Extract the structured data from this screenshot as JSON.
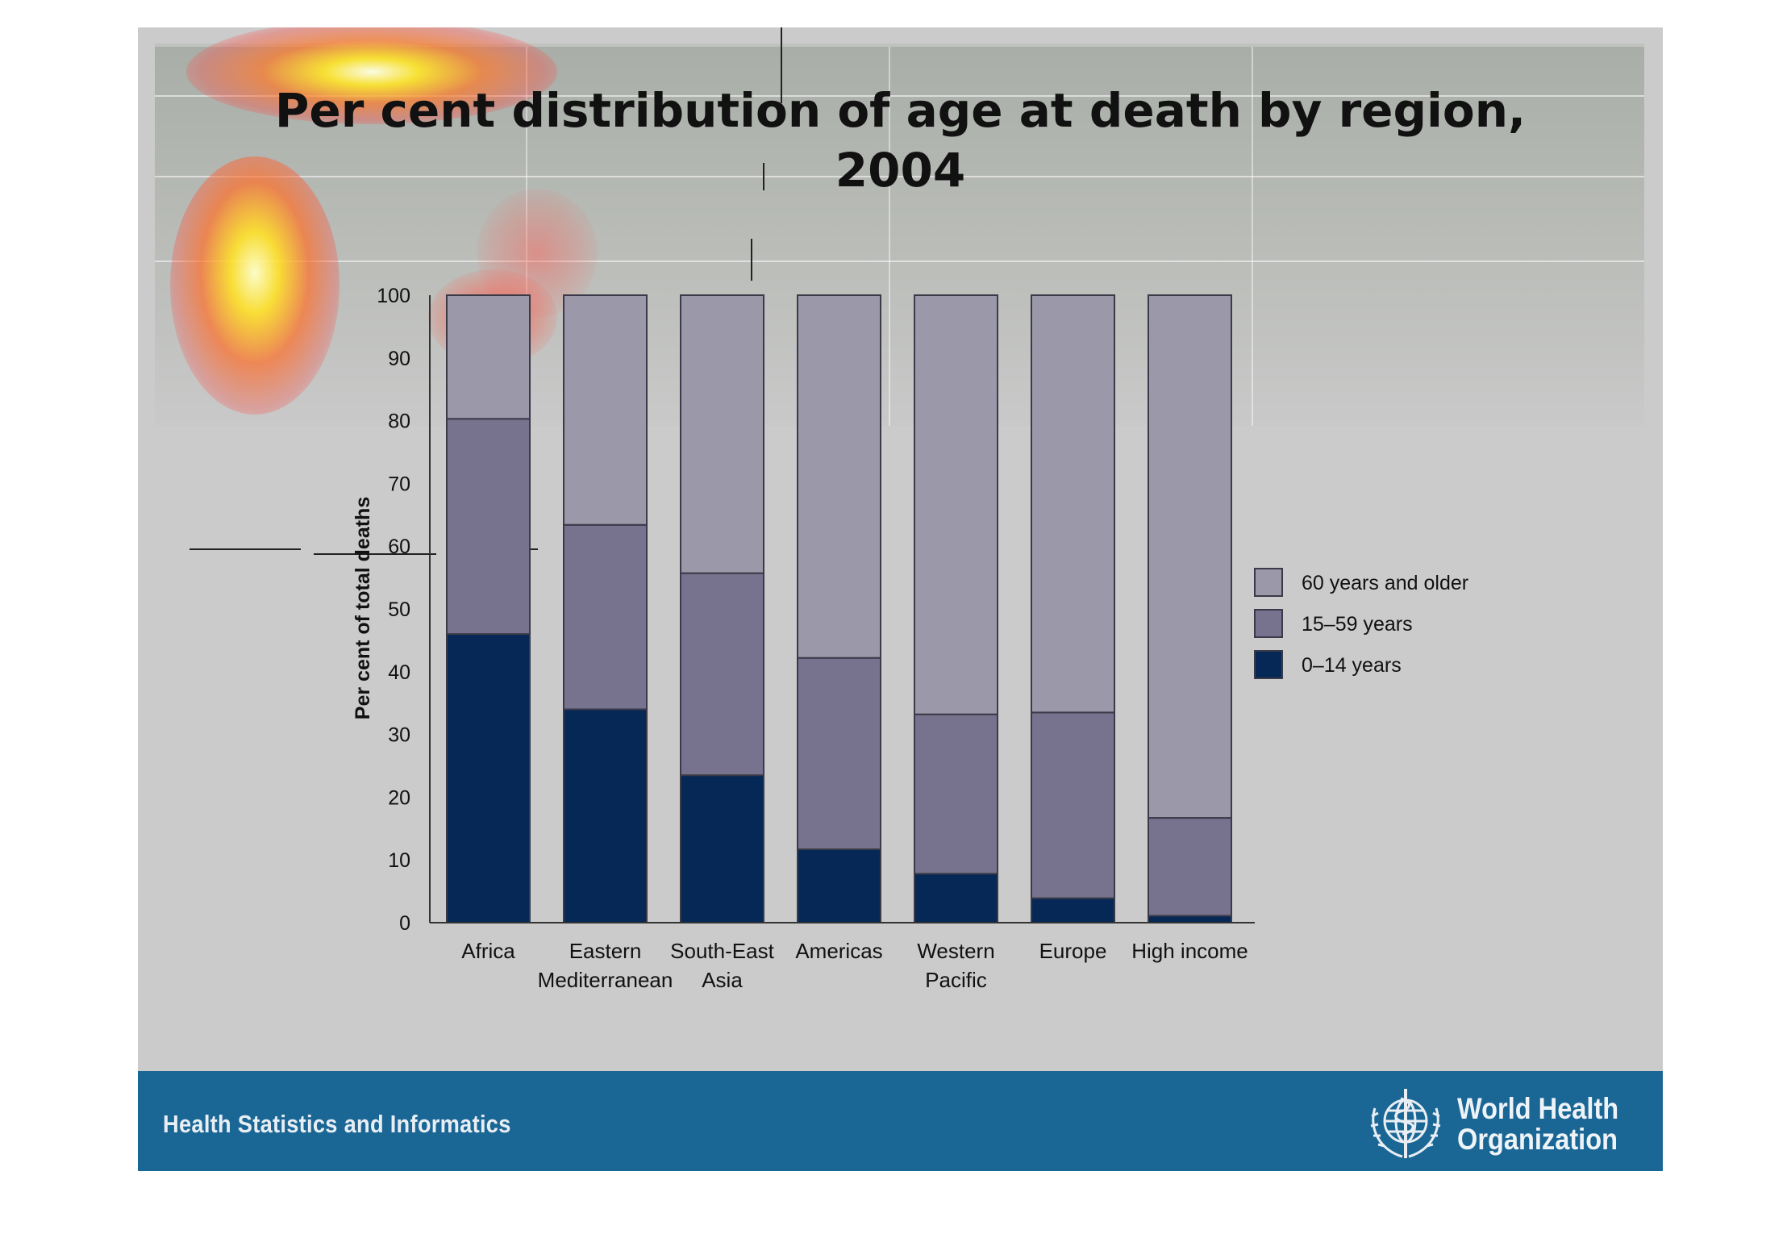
{
  "slide": {
    "title_lines": [
      "Per cent distribution of age at death by region,",
      "2004"
    ],
    "footer_label": "Health Statistics and Informatics",
    "org_name_lines": [
      "World Health",
      "Organization"
    ]
  },
  "colors": {
    "age_60_plus": "#9b98aa",
    "age_15_59": "#77738f",
    "age_0_14": "#052856",
    "footer": "#1a6695",
    "slide_bg": "#cbcbcb"
  },
  "chart_data": {
    "type": "bar",
    "stacked": true,
    "title": "Per cent distribution of age at death by region, 2004",
    "ylabel": "Per cent of total deaths",
    "xlabel": "",
    "ylim": [
      0,
      100
    ],
    "yticks": [
      0,
      10,
      20,
      30,
      40,
      50,
      60,
      70,
      80,
      90,
      100
    ],
    "categories": [
      [
        "Africa"
      ],
      [
        "Eastern",
        "Mediterranean"
      ],
      [
        "South-East",
        "Asia"
      ],
      [
        "Americas"
      ],
      [
        "Western",
        "Pacific"
      ],
      [
        "Europe"
      ],
      [
        "High income"
      ]
    ],
    "series": [
      {
        "name": "0–14 years",
        "color": "#052856",
        "values": [
          46,
          34,
          23.5,
          11.7,
          7.8,
          3.9,
          1.1
        ]
      },
      {
        "name": "15–59 years",
        "color": "#77738f",
        "values": [
          34.3,
          29.4,
          32.2,
          30.5,
          25.4,
          29.6,
          15.6
        ]
      },
      {
        "name": "60 years and older",
        "color": "#9b98aa",
        "values": [
          19.7,
          36.6,
          44.3,
          57.8,
          66.8,
          66.5,
          83.3
        ]
      }
    ],
    "legend": {
      "placement": "right",
      "order": [
        "60 years and older",
        "15–59 years",
        "0–14 years"
      ]
    }
  }
}
